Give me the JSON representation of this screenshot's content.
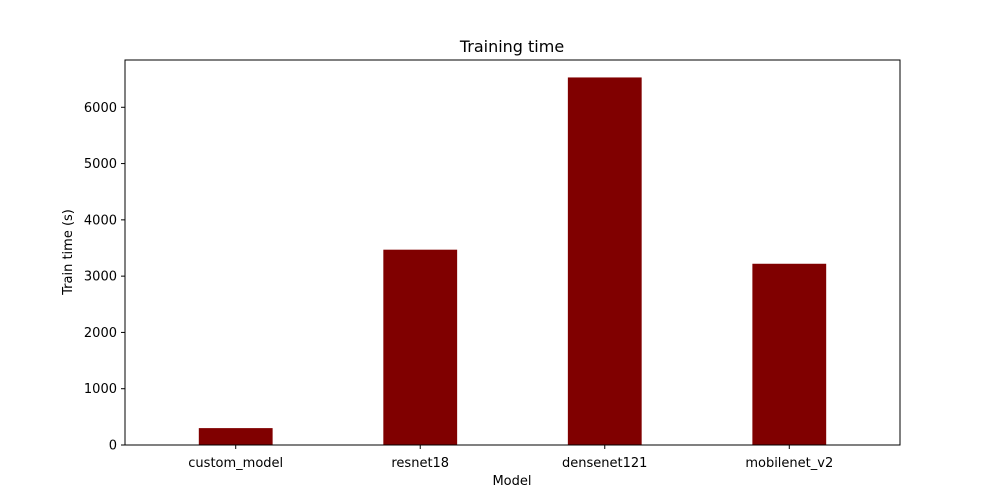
{
  "chart_data": {
    "type": "bar",
    "title": "Training time",
    "xlabel": "Model",
    "ylabel": "Train time (s)",
    "categories": [
      "custom_model",
      "resnet18",
      "densenet121",
      "mobilenet_v2"
    ],
    "values": [
      300,
      3470,
      6530,
      3220
    ],
    "ylim": [
      0,
      6840
    ],
    "yticks": [
      0,
      1000,
      2000,
      3000,
      4000,
      5000,
      6000
    ],
    "grid": false,
    "legend": "none",
    "bar_color": "#800000"
  }
}
